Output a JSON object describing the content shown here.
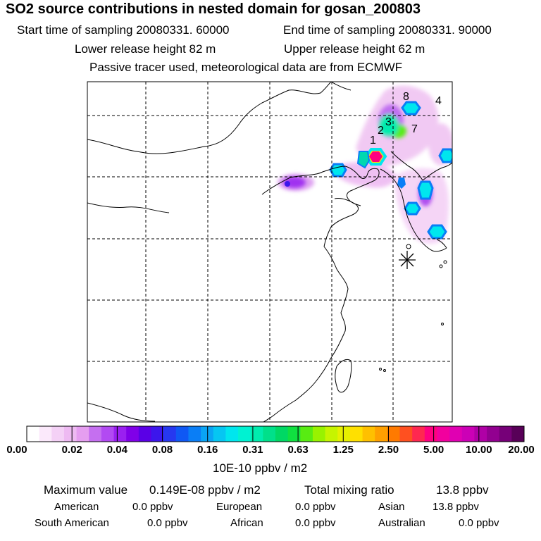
{
  "header": {
    "title": "SO2 source contributions in nested domain for gosan_200803",
    "start_label": "Start time of sampling 20080331. 60000",
    "end_label": "End time of sampling 20080331. 90000",
    "lower_label": "Lower release height   82 m",
    "upper_label": "Upper release height   62 m",
    "note": "Passive tracer used, meteorological data are from ECMWF"
  },
  "map": {
    "source_markers": [
      "1",
      "2",
      "3",
      "4",
      "7",
      "8"
    ],
    "receptor_symbol": "gosan-asterisk"
  },
  "colorbar": {
    "labels": [
      "0.00",
      "0.02",
      "0.04",
      "0.08",
      "0.16",
      "0.31",
      "0.63",
      "1.25",
      "2.50",
      "5.00",
      "10.00",
      "20.00"
    ],
    "colors": [
      "#ffffff",
      "#fbe9fb",
      "#f4d1f6",
      "#eebaf2",
      "#e59ef0",
      "#c56ff0",
      "#b24af2",
      "#9a20f0",
      "#8000e8",
      "#5a00e6",
      "#3c16ec",
      "#2638f0",
      "#0f58f4",
      "#0a7ef6",
      "#0aa4f4",
      "#06c6f2",
      "#00e6ee",
      "#00f2d2",
      "#00ecae",
      "#00e08a",
      "#00d864",
      "#10e040",
      "#58ec12",
      "#98f200",
      "#c6f400",
      "#e6f000",
      "#ffe000",
      "#ffc000",
      "#ffa000",
      "#ff7a00",
      "#ff5020",
      "#ff2850",
      "#ff0080",
      "#f2009e",
      "#e000b2",
      "#cc00b6",
      "#b000a6",
      "#920090",
      "#760078",
      "#580058"
    ],
    "units": "10E-10 ppbv / m2"
  },
  "stats": {
    "max_label": "Maximum value",
    "max_value": "0.149E-08 ppbv / m2",
    "total_label": "Total mixing ratio",
    "total_value": "13.8 ppbv",
    "regions": [
      {
        "name": "American",
        "value": "0.0 ppbv"
      },
      {
        "name": "European",
        "value": "0.0 ppbv"
      },
      {
        "name": "Asian",
        "value": "13.8 ppbv"
      },
      {
        "name": "South American",
        "value": "0.0 ppbv"
      },
      {
        "name": "African",
        "value": "0.0 ppbv"
      },
      {
        "name": "Australian",
        "value": "0.0 ppbv"
      }
    ]
  }
}
